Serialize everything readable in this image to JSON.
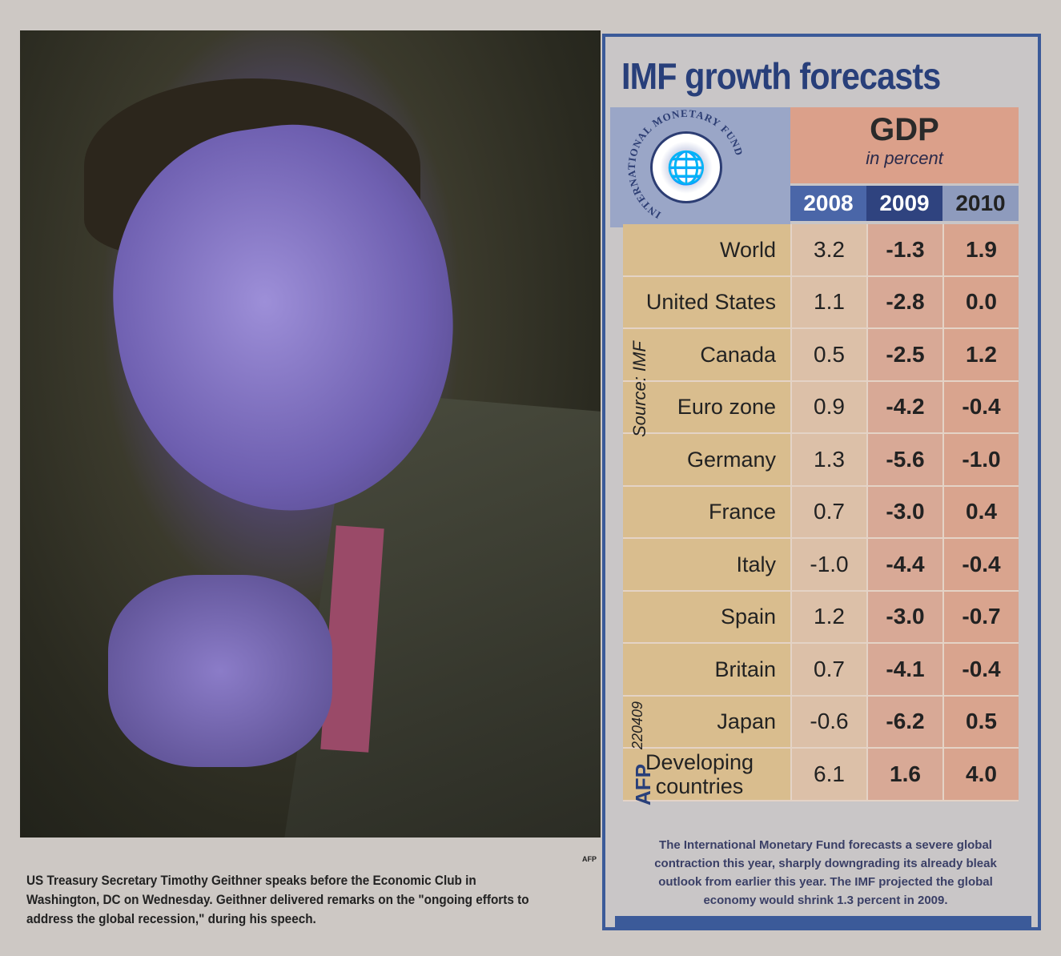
{
  "photo": {
    "credit": "AFP",
    "caption": "US Treasury Secretary Timothy Geithner speaks before the Economic Club in Washington, DC on Wednesday. Geithner delivered remarks on the \"ongoing efforts to address the global recession,\" during his speech."
  },
  "infographic": {
    "title": "IMF growth forecasts",
    "logo_text": "INTERNATIONAL MONETARY FUND",
    "header": "GDP",
    "subheader": "in percent",
    "years": [
      "2008",
      "2009",
      "2010"
    ],
    "source": "Source: IMF",
    "code": "220409",
    "agency": "AFP",
    "rows": [
      {
        "label": "World",
        "values": [
          "3.2",
          "-1.3",
          "1.9"
        ]
      },
      {
        "label": "United States",
        "values": [
          "1.1",
          "-2.8",
          "0.0"
        ]
      },
      {
        "label": "Canada",
        "values": [
          "0.5",
          "-2.5",
          "1.2"
        ]
      },
      {
        "label": "Euro zone",
        "values": [
          "0.9",
          "-4.2",
          "-0.4"
        ]
      },
      {
        "label": "Germany",
        "values": [
          "1.3",
          "-5.6",
          "-1.0"
        ]
      },
      {
        "label": "France",
        "values": [
          "0.7",
          "-3.0",
          "0.4"
        ]
      },
      {
        "label": "Italy",
        "values": [
          "-1.0",
          "-4.4",
          "-0.4"
        ]
      },
      {
        "label": "Spain",
        "values": [
          "1.2",
          "-3.0",
          "-0.7"
        ]
      },
      {
        "label": "Britain",
        "values": [
          "0.7",
          "-4.1",
          "-0.4"
        ]
      },
      {
        "label": "Japan",
        "values": [
          "-0.6",
          "-6.2",
          "0.5"
        ]
      },
      {
        "label": "Developing countries",
        "values": [
          "6.1",
          "1.6",
          "4.0"
        ]
      }
    ],
    "footnote": "The International Monetary Fund forecasts a severe global contraction this year, sharply downgrading its already bleak outlook from earlier this year. The IMF projected the global economy would shrink 1.3 percent in 2009."
  }
}
